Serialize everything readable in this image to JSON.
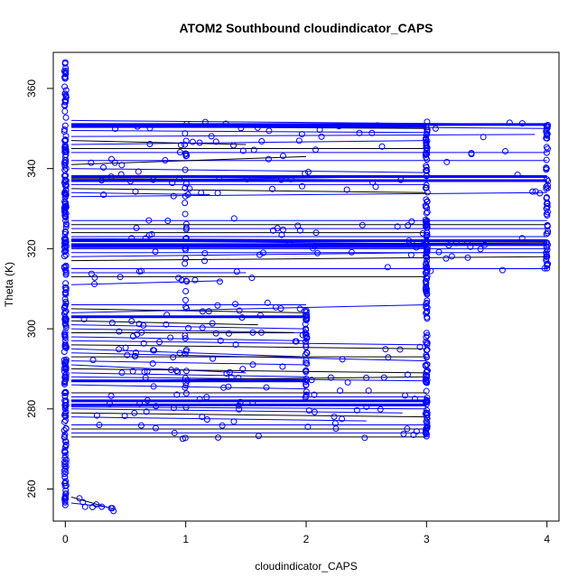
{
  "chart_data": {
    "type": "scatter",
    "title": "ATOM2 Southbound cloudindicator_CAPS",
    "xlabel": "cloudindicator_CAPS",
    "ylabel": "Theta (K)",
    "xlim": [
      -0.1,
      4.1
    ],
    "ylim": [
      252,
      369
    ],
    "x_ticks": [
      0,
      1,
      2,
      3,
      4
    ],
    "y_ticks": [
      260,
      280,
      300,
      320,
      340,
      360
    ],
    "grid": false,
    "legend": "none",
    "colors": {
      "points": "#0000ff",
      "lines": "#000000",
      "blue_lines": "#0000ff",
      "frame": "#000000"
    },
    "x_jitter": 0.04,
    "x_values": [
      0,
      1,
      2,
      3,
      4
    ],
    "point_range_by_x": [
      {
        "x": 0,
        "theta_min": 256,
        "theta_max": 367
      },
      {
        "x": 1,
        "theta_min": 272,
        "theta_max": 352
      },
      {
        "x": 2,
        "theta_min": 281,
        "theta_max": 305
      },
      {
        "x": 3,
        "theta_min": 273,
        "theta_max": 352
      },
      {
        "x": 4,
        "theta_min": 315,
        "theta_max": 352
      }
    ],
    "line_segments": [
      {
        "x0": 0.05,
        "y0": 352,
        "x1": 4,
        "y1": 351,
        "c": "b"
      },
      {
        "x0": 0.05,
        "y0": 351,
        "x1": 4,
        "y1": 350,
        "c": "b"
      },
      {
        "x0": 0.05,
        "y0": 350.5,
        "x1": 3,
        "y1": 350,
        "c": "k"
      },
      {
        "x0": 0.05,
        "y0": 349.5,
        "x1": 3,
        "y1": 349,
        "c": "b"
      },
      {
        "x0": 0.05,
        "y0": 348,
        "x1": 3.9,
        "y1": 348.5,
        "c": "b"
      },
      {
        "x0": 0.05,
        "y0": 347,
        "x1": 1.5,
        "y1": 346,
        "c": "k"
      },
      {
        "x0": 0.05,
        "y0": 346,
        "x1": 3,
        "y1": 347,
        "c": "b"
      },
      {
        "x0": 0.05,
        "y0": 345,
        "x1": 3,
        "y1": 345,
        "c": "k"
      },
      {
        "x0": 0.05,
        "y0": 344,
        "x1": 4,
        "y1": 344,
        "c": "b"
      },
      {
        "x0": 0.05,
        "y0": 342,
        "x1": 4,
        "y1": 342,
        "c": "b"
      },
      {
        "x0": 0.05,
        "y0": 341,
        "x1": 2,
        "y1": 343,
        "c": "k"
      },
      {
        "x0": 0.05,
        "y0": 340,
        "x1": 3,
        "y1": 339,
        "c": "b"
      },
      {
        "x0": 0.05,
        "y0": 338,
        "x1": 4,
        "y1": 338,
        "c": "b"
      },
      {
        "x0": 0.05,
        "y0": 337.5,
        "x1": 4,
        "y1": 337,
        "c": "k"
      },
      {
        "x0": 0.05,
        "y0": 337,
        "x1": 3,
        "y1": 338,
        "c": "b"
      },
      {
        "x0": 0.05,
        "y0": 336,
        "x1": 3,
        "y1": 336,
        "c": "b"
      },
      {
        "x0": 0.05,
        "y0": 335,
        "x1": 3,
        "y1": 334,
        "c": "k"
      },
      {
        "x0": 0.05,
        "y0": 334,
        "x1": 1.2,
        "y1": 333.5,
        "c": "b"
      },
      {
        "x0": 0.05,
        "y0": 333,
        "x1": 4,
        "y1": 334,
        "c": "b"
      },
      {
        "x0": 0.05,
        "y0": 327,
        "x1": 4,
        "y1": 327,
        "c": "b"
      },
      {
        "x0": 0.05,
        "y0": 326,
        "x1": 4,
        "y1": 326,
        "c": "k"
      },
      {
        "x0": 0.05,
        "y0": 325,
        "x1": 4,
        "y1": 325,
        "c": "b"
      },
      {
        "x0": 0.05,
        "y0": 324,
        "x1": 3,
        "y1": 324,
        "c": "k"
      },
      {
        "x0": 0.05,
        "y0": 323,
        "x1": 4,
        "y1": 323,
        "c": "b"
      },
      {
        "x0": 0.05,
        "y0": 322.5,
        "x1": 4,
        "y1": 322,
        "c": "b"
      },
      {
        "x0": 0.05,
        "y0": 322,
        "x1": 4,
        "y1": 321,
        "c": "b"
      },
      {
        "x0": 0.05,
        "y0": 321,
        "x1": 4,
        "y1": 321.5,
        "c": "k"
      },
      {
        "x0": 0.05,
        "y0": 320,
        "x1": 4,
        "y1": 320,
        "c": "b"
      },
      {
        "x0": 0.05,
        "y0": 319,
        "x1": 4,
        "y1": 319,
        "c": "b"
      },
      {
        "x0": 0.05,
        "y0": 318,
        "x1": 3,
        "y1": 319,
        "c": "b"
      },
      {
        "x0": 0.05,
        "y0": 317,
        "x1": 4,
        "y1": 318,
        "c": "k"
      },
      {
        "x0": 0.05,
        "y0": 315,
        "x1": 4,
        "y1": 315,
        "c": "b"
      },
      {
        "x0": 0.05,
        "y0": 314,
        "x1": 1.5,
        "y1": 314,
        "c": "b"
      },
      {
        "x0": 0.05,
        "y0": 313,
        "x1": 3,
        "y1": 313,
        "c": "k"
      },
      {
        "x0": 0.05,
        "y0": 311,
        "x1": 1.3,
        "y1": 312,
        "c": "b"
      },
      {
        "x0": 0.05,
        "y0": 306,
        "x1": 2,
        "y1": 306,
        "c": "b"
      },
      {
        "x0": 0.05,
        "y0": 305,
        "x1": 2,
        "y1": 304,
        "c": "k"
      },
      {
        "x0": 0.05,
        "y0": 304,
        "x1": 3,
        "y1": 306,
        "c": "b"
      },
      {
        "x0": 0.05,
        "y0": 303,
        "x1": 2,
        "y1": 303,
        "c": "b"
      },
      {
        "x0": 0.05,
        "y0": 302,
        "x1": 1.6,
        "y1": 301,
        "c": "k"
      },
      {
        "x0": 0.05,
        "y0": 301,
        "x1": 2,
        "y1": 300,
        "c": "b"
      },
      {
        "x0": 0.05,
        "y0": 300,
        "x1": 2,
        "y1": 299,
        "c": "b"
      },
      {
        "x0": 0.05,
        "y0": 299,
        "x1": 1.9,
        "y1": 299,
        "c": "k"
      },
      {
        "x0": 0.05,
        "y0": 298,
        "x1": 2,
        "y1": 297,
        "c": "b"
      },
      {
        "x0": 0.05,
        "y0": 297,
        "x1": 3,
        "y1": 296,
        "c": "b"
      },
      {
        "x0": 0.05,
        "y0": 296,
        "x1": 3,
        "y1": 295,
        "c": "k"
      },
      {
        "x0": 0.05,
        "y0": 295,
        "x1": 2,
        "y1": 293,
        "c": "b"
      },
      {
        "x0": 0.05,
        "y0": 294,
        "x1": 3,
        "y1": 292,
        "c": "b"
      },
      {
        "x0": 0.05,
        "y0": 293,
        "x1": 3,
        "y1": 293,
        "c": "k"
      },
      {
        "x0": 0.05,
        "y0": 292,
        "x1": 2,
        "y1": 291,
        "c": "b"
      },
      {
        "x0": 0.05,
        "y0": 291,
        "x1": 1.5,
        "y1": 289,
        "c": "b"
      },
      {
        "x0": 0.05,
        "y0": 290,
        "x1": 3,
        "y1": 289,
        "c": "k"
      },
      {
        "x0": 0.05,
        "y0": 289,
        "x1": 2,
        "y1": 288,
        "c": "b"
      },
      {
        "x0": 0.05,
        "y0": 288,
        "x1": 3,
        "y1": 287,
        "c": "b"
      },
      {
        "x0": 0.05,
        "y0": 287,
        "x1": 3,
        "y1": 288,
        "c": "k"
      },
      {
        "x0": 0.05,
        "y0": 286,
        "x1": 2,
        "y1": 285,
        "c": "b"
      },
      {
        "x0": 0.05,
        "y0": 284,
        "x1": 3,
        "y1": 284,
        "c": "k"
      },
      {
        "x0": 0.05,
        "y0": 283,
        "x1": 3,
        "y1": 283,
        "c": "b"
      },
      {
        "x0": 0.05,
        "y0": 282,
        "x1": 3,
        "y1": 282,
        "c": "b"
      },
      {
        "x0": 0.05,
        "y0": 281,
        "x1": 3,
        "y1": 281,
        "c": "k"
      },
      {
        "x0": 0.05,
        "y0": 280.5,
        "x1": 3,
        "y1": 280,
        "c": "b"
      },
      {
        "x0": 0.05,
        "y0": 280,
        "x1": 2.8,
        "y1": 279,
        "c": "b"
      },
      {
        "x0": 0.05,
        "y0": 279,
        "x1": 3,
        "y1": 278,
        "c": "k"
      },
      {
        "x0": 0.05,
        "y0": 278,
        "x1": 2.5,
        "y1": 277,
        "c": "b"
      },
      {
        "x0": 0.05,
        "y0": 276,
        "x1": 3,
        "y1": 276,
        "c": "b"
      },
      {
        "x0": 0.05,
        "y0": 275,
        "x1": 3,
        "y1": 275,
        "c": "k"
      },
      {
        "x0": 0.05,
        "y0": 274,
        "x1": 3,
        "y1": 274,
        "c": "b"
      },
      {
        "x0": 0.05,
        "y0": 273,
        "x1": 3,
        "y1": 273,
        "c": "k"
      },
      {
        "x0": 0.05,
        "y0": 258,
        "x1": 0.4,
        "y1": 255,
        "c": "k"
      },
      {
        "x0": 0.05,
        "y0": 256.5,
        "x1": 0.35,
        "y1": 255.5,
        "c": "b"
      }
    ],
    "bands": [
      {
        "y": 351,
        "x0": 0.05,
        "x1": 4
      },
      {
        "y": 350.5,
        "x0": 0.05,
        "x1": 3
      },
      {
        "y": 338,
        "x0": 0.05,
        "x1": 4
      },
      {
        "y": 337,
        "x0": 0.05,
        "x1": 4
      },
      {
        "y": 322,
        "x0": 0.05,
        "x1": 4
      },
      {
        "y": 321,
        "x0": 0.05,
        "x1": 4
      },
      {
        "y": 320.5,
        "x0": 0.05,
        "x1": 3
      },
      {
        "y": 303,
        "x0": 0.05,
        "x1": 2
      },
      {
        "y": 287,
        "x0": 0.05,
        "x1": 2
      },
      {
        "y": 282,
        "x0": 0.05,
        "x1": 3
      },
      {
        "y": 281,
        "x0": 0.05,
        "x1": 3
      }
    ]
  }
}
